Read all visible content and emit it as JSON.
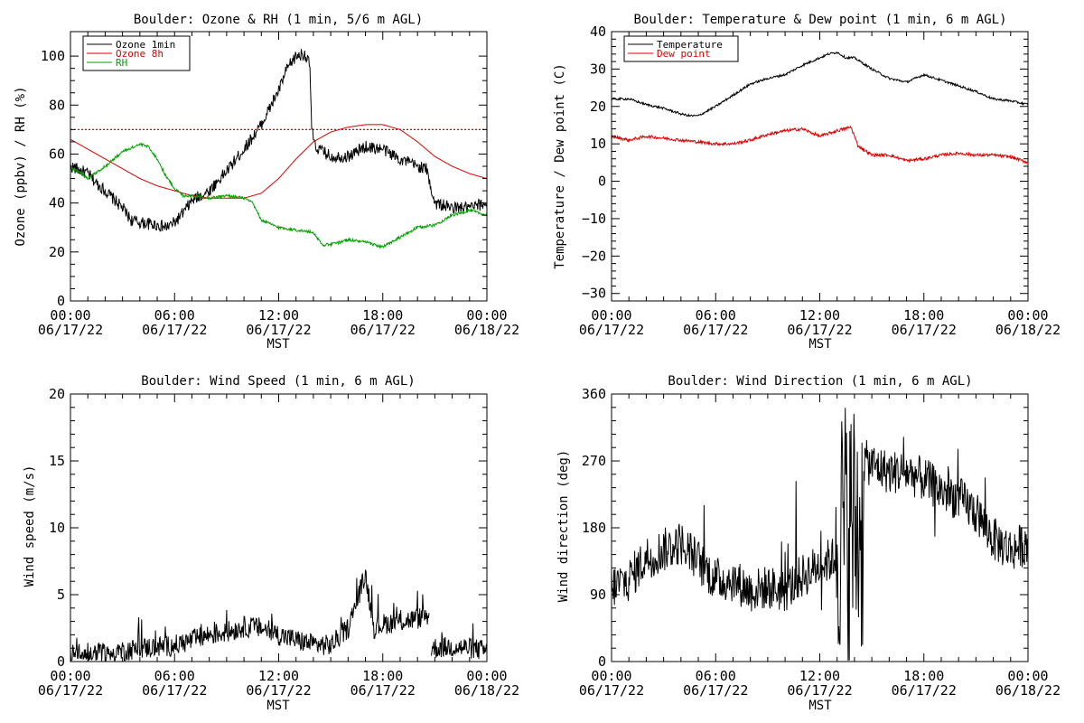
{
  "chart_data": [
    {
      "type": "line",
      "title": "Boulder: Ozone & RH (1 min, 5/6 m AGL)",
      "xlabel": "MST",
      "ylabel": "Ozone (ppbv) / RH (%)",
      "xlim": [
        0,
        24
      ],
      "ylim": [
        0,
        110
      ],
      "yticks": [
        "0",
        "20",
        "40",
        "60",
        "80",
        "100"
      ],
      "x_ticks": [
        {
          "time": "00:00",
          "date": "06/17/22"
        },
        {
          "time": "06:00",
          "date": "06/17/22"
        },
        {
          "time": "12:00",
          "date": "06/17/22"
        },
        {
          "time": "18:00",
          "date": "06/17/22"
        },
        {
          "time": "00:00",
          "date": "06/18/22"
        }
      ],
      "legend_position": "top-left",
      "reference_line": {
        "y": 70,
        "color": "#dd0000",
        "style": "dotted"
      },
      "series": [
        {
          "name": "Ozone 1min",
          "color": "#000000",
          "noise": 2.5,
          "x": [
            0,
            1,
            1.5,
            2,
            3,
            3.5,
            4,
            5,
            5.5,
            6,
            6.5,
            7,
            8,
            9,
            10,
            11,
            12,
            12.5,
            13,
            13.5,
            13.8,
            13.9,
            14.1,
            15,
            16,
            17,
            18,
            19,
            20,
            20.5,
            21,
            22,
            23,
            24
          ],
          "y": [
            55,
            52,
            48,
            45,
            38,
            33,
            32,
            31,
            30,
            32,
            36,
            41,
            45,
            53,
            62,
            72,
            86,
            95,
            100,
            101,
            96,
            70,
            63,
            59,
            59,
            63,
            62,
            58,
            55,
            54,
            40,
            38,
            38,
            40
          ]
        },
        {
          "name": "Ozone 8h",
          "color": "#dd0000",
          "noise": 0,
          "x": [
            0,
            1,
            2,
            3,
            4,
            5,
            6,
            7,
            8,
            9,
            10,
            11,
            12,
            13,
            14,
            15,
            16,
            17,
            18,
            19,
            20,
            21,
            22,
            23,
            24
          ],
          "y": [
            66,
            62,
            58,
            54,
            50,
            47,
            45,
            43,
            42,
            42,
            42,
            44,
            50,
            58,
            65,
            69,
            71,
            72,
            72,
            70,
            65,
            59,
            55,
            52,
            50
          ]
        },
        {
          "name": "RH",
          "color": "#00a000",
          "noise": 0.6,
          "x": [
            0,
            0.5,
            1,
            2,
            3,
            4,
            4.5,
            5,
            5.5,
            6,
            6.5,
            7,
            8,
            9,
            10,
            10.5,
            11,
            12,
            13,
            14,
            14.5,
            15,
            16,
            17,
            18,
            19,
            20,
            21,
            22,
            23,
            24
          ],
          "y": [
            54,
            53,
            50,
            55,
            61,
            64,
            63,
            58,
            51,
            46,
            43,
            43,
            42,
            43,
            42,
            40,
            33,
            30,
            29,
            28,
            23,
            23,
            25,
            24,
            22,
            26,
            30,
            31,
            35,
            37,
            35
          ]
        }
      ]
    },
    {
      "type": "line",
      "title": "Boulder: Temperature & Dew point (1 min, 6 m AGL)",
      "xlabel": "MST",
      "ylabel": "Temperature / Dew point (C)",
      "xlim": [
        0,
        24
      ],
      "ylim": [
        -32,
        40
      ],
      "yticks": [
        "−30",
        "−20",
        "−10",
        "0",
        "10",
        "20",
        "30",
        "40"
      ],
      "x_ticks": [
        {
          "time": "00:00",
          "date": "06/17/22"
        },
        {
          "time": "06:00",
          "date": "06/17/22"
        },
        {
          "time": "12:00",
          "date": "06/17/22"
        },
        {
          "time": "18:00",
          "date": "06/17/22"
        },
        {
          "time": "00:00",
          "date": "06/18/22"
        }
      ],
      "legend_position": "top-left",
      "series": [
        {
          "name": "Temperature",
          "color": "#000000",
          "noise": 0.3,
          "x": [
            0,
            1,
            2,
            3,
            4,
            4.5,
            5,
            6,
            7,
            8,
            9,
            10,
            11,
            12,
            12.5,
            13,
            13.5,
            14,
            15,
            16,
            17,
            18,
            19,
            20,
            21,
            22,
            23,
            24
          ],
          "y": [
            22,
            22,
            20.5,
            19.5,
            18,
            17.5,
            17.5,
            20,
            23,
            26,
            27.5,
            28.5,
            31,
            33,
            34,
            34.5,
            33,
            33,
            30,
            27.5,
            26.5,
            28.5,
            27,
            25.5,
            24,
            22,
            21.5,
            20.5
          ]
        },
        {
          "name": "Dew point",
          "color": "#dd0000",
          "noise": 0.4,
          "x": [
            0,
            1,
            2,
            3,
            4,
            5,
            6,
            7,
            8,
            9,
            10,
            11,
            12,
            13,
            13.8,
            14,
            14.2,
            15,
            16,
            17,
            18,
            19,
            20,
            21,
            22,
            23,
            24
          ],
          "y": [
            12,
            11,
            12,
            11.5,
            11,
            10.5,
            10,
            10,
            11,
            12.5,
            13.5,
            14,
            12,
            13.5,
            14.5,
            12,
            9.5,
            7,
            7,
            5.5,
            6,
            7,
            7.5,
            7,
            7,
            6.5,
            5
          ]
        }
      ]
    },
    {
      "type": "line",
      "title": "Boulder: Wind Speed (1 min, 6 m AGL)",
      "xlabel": "MST",
      "ylabel": "Wind speed (m/s)",
      "xlim": [
        0,
        24
      ],
      "ylim": [
        0,
        20
      ],
      "yticks": [
        "0",
        "5",
        "10",
        "15",
        "20"
      ],
      "x_ticks": [
        {
          "time": "00:00",
          "date": "06/17/22"
        },
        {
          "time": "06:00",
          "date": "06/17/22"
        },
        {
          "time": "12:00",
          "date": "06/17/22"
        },
        {
          "time": "18:00",
          "date": "06/17/22"
        },
        {
          "time": "00:00",
          "date": "06/18/22"
        }
      ],
      "series": [
        {
          "name": "",
          "color": "#000000",
          "noise": 0.8,
          "gap": [
            20.7,
            20.8
          ],
          "x": [
            0,
            1,
            2,
            3,
            4,
            5,
            6,
            7,
            8,
            9,
            10,
            11,
            12,
            13,
            14,
            15,
            16,
            16.5,
            17,
            17.5,
            18,
            19,
            20,
            20.7,
            20.8,
            22,
            23,
            24
          ],
          "y": [
            0.5,
            0.6,
            0.6,
            0.8,
            1,
            1.1,
            1.2,
            1.6,
            2,
            2.2,
            2.6,
            2.5,
            2,
            1.6,
            1.3,
            1.2,
            2.5,
            4.5,
            6.5,
            2.5,
            2.8,
            3,
            3.2,
            3.5,
            1,
            1.1,
            1,
            0.8
          ]
        }
      ]
    },
    {
      "type": "line",
      "title": "Boulder: Wind Direction (1 min, 6 m AGL)",
      "xlabel": "MST",
      "ylabel": "Wind direction (deg)",
      "xlim": [
        0,
        24
      ],
      "ylim": [
        0,
        360
      ],
      "yticks": [
        "0",
        "90",
        "180",
        "270",
        "360"
      ],
      "x_ticks": [
        {
          "time": "00:00",
          "date": "06/17/22"
        },
        {
          "time": "06:00",
          "date": "06/17/22"
        },
        {
          "time": "12:00",
          "date": "06/17/22"
        },
        {
          "time": "18:00",
          "date": "06/17/22"
        },
        {
          "time": "00:00",
          "date": "06/18/22"
        }
      ],
      "series": [
        {
          "name": "",
          "color": "#000000",
          "noise": 30,
          "chaos": [
            12.9,
            14.5
          ],
          "x": [
            0,
            1,
            2,
            3,
            4,
            5,
            6,
            7,
            8,
            9,
            10,
            11,
            12,
            12.9,
            14.5,
            15,
            16,
            17,
            18,
            19,
            20,
            21,
            22,
            23,
            24
          ],
          "y": [
            100,
            110,
            140,
            150,
            160,
            135,
            110,
            110,
            95,
            100,
            95,
            115,
            130,
            140,
            270,
            265,
            255,
            255,
            245,
            230,
            220,
            200,
            165,
            150,
            160
          ]
        }
      ]
    }
  ]
}
